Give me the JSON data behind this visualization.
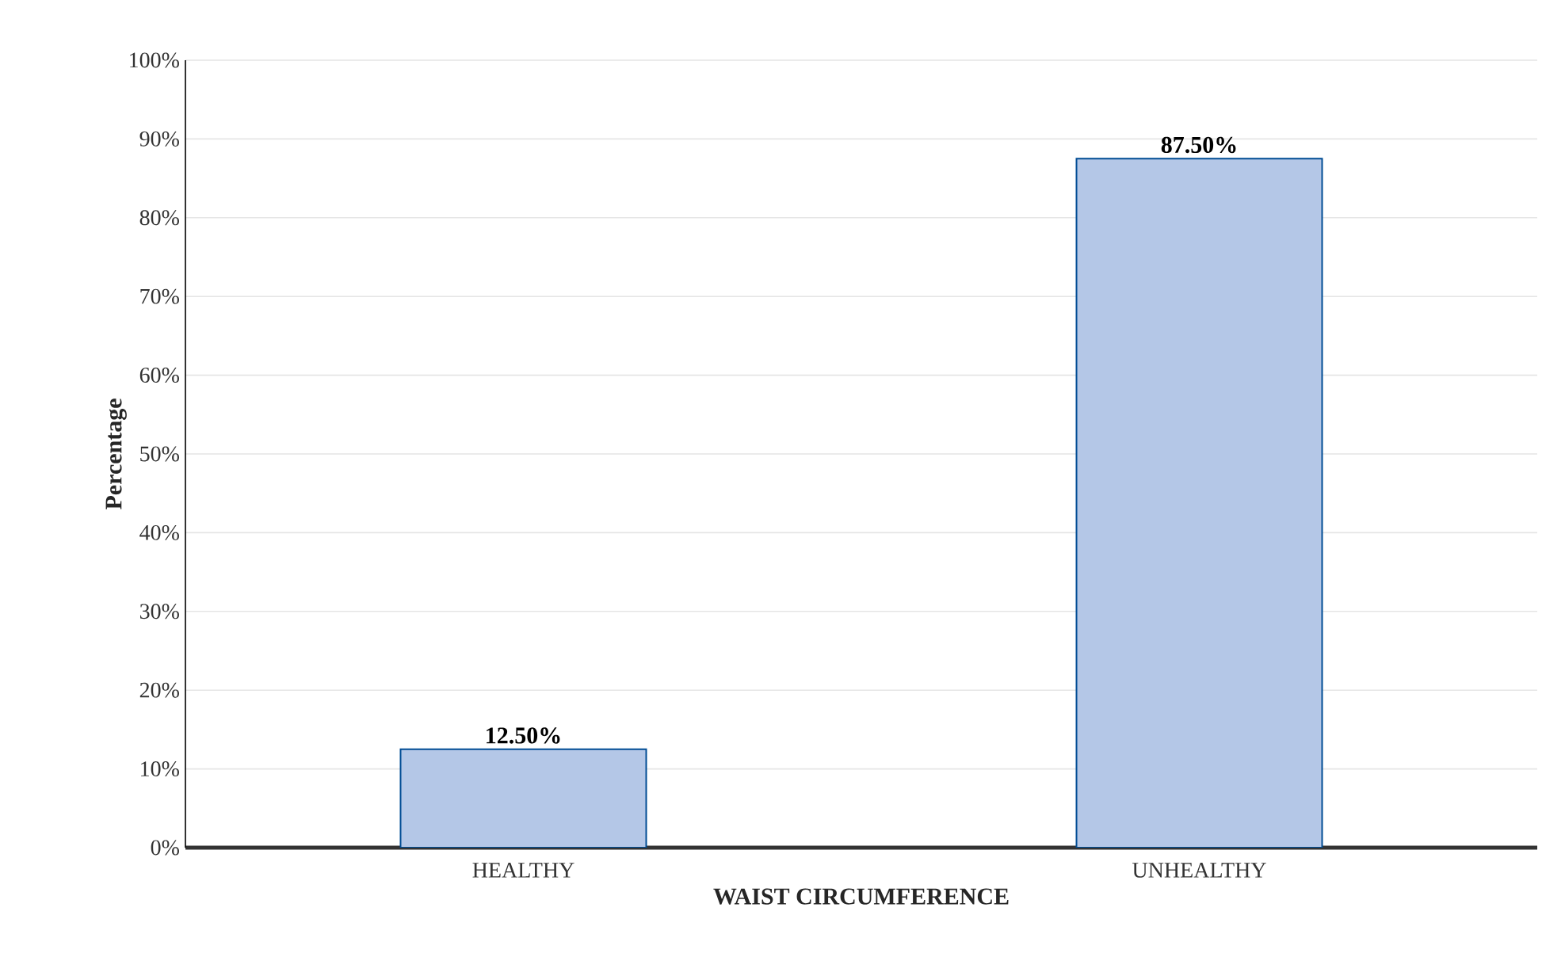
{
  "chart_data": {
    "type": "bar",
    "xlabel": "WAIST CIRCUMFERENCE",
    "ylabel": "Percentage",
    "categories": [
      "HEALTHY",
      "UNHEALTHY"
    ],
    "values": [
      12.5,
      87.5
    ],
    "value_labels": [
      "12.50%",
      "87.50%"
    ],
    "color": "#b4c7e7",
    "ylim": [
      0,
      100
    ],
    "yticks": [
      {
        "value": 0,
        "label": "0%"
      },
      {
        "value": 10,
        "label": "10%"
      },
      {
        "value": 20,
        "label": "20%"
      },
      {
        "value": 30,
        "label": "30%"
      },
      {
        "value": 40,
        "label": "40%"
      },
      {
        "value": 50,
        "label": "50%"
      },
      {
        "value": 60,
        "label": "60%"
      },
      {
        "value": 70,
        "label": "70%"
      },
      {
        "value": 80,
        "label": "80%"
      },
      {
        "value": 90,
        "label": "90%"
      },
      {
        "value": 100,
        "label": "100%"
      }
    ],
    "grid": "y"
  }
}
